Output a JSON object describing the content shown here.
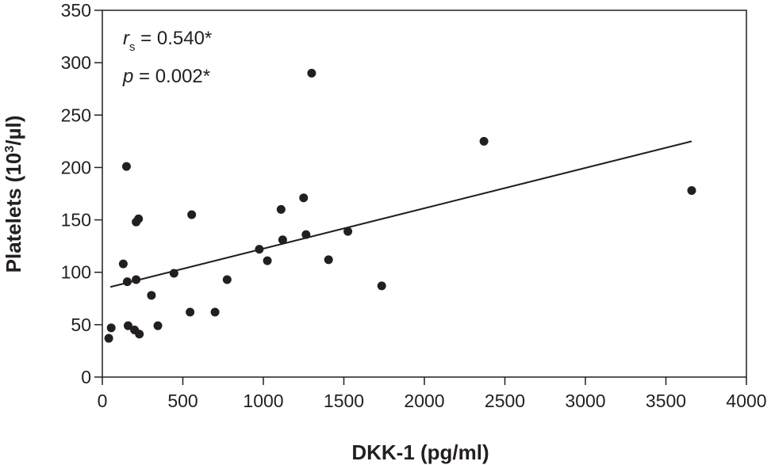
{
  "chart_data": {
    "type": "scatter",
    "xlabel": "DKK-1 (pg/ml)",
    "ylabel_parts": {
      "pre": "Platelets (10",
      "sup": "3",
      "post": "/µl)"
    },
    "xlim": [
      0,
      4000
    ],
    "ylim": [
      0,
      350
    ],
    "xticks": [
      0,
      500,
      1000,
      1500,
      2000,
      2500,
      3000,
      3500,
      4000
    ],
    "yticks": [
      0,
      50,
      100,
      150,
      200,
      250,
      300,
      350
    ],
    "grid": false,
    "annotations": {
      "rs_symbol": "r",
      "rs_sub": "s",
      "rs_value": " = 0.540*",
      "p_symbol": "p",
      "p_value": " = 0.002*"
    },
    "trendline": {
      "x": [
        50,
        3660
      ],
      "y": [
        86,
        225
      ]
    },
    "points": [
      {
        "x": 40,
        "y": 37
      },
      {
        "x": 55,
        "y": 47
      },
      {
        "x": 130,
        "y": 108
      },
      {
        "x": 150,
        "y": 201
      },
      {
        "x": 155,
        "y": 91
      },
      {
        "x": 160,
        "y": 49
      },
      {
        "x": 200,
        "y": 45
      },
      {
        "x": 210,
        "y": 93
      },
      {
        "x": 210,
        "y": 148
      },
      {
        "x": 225,
        "y": 151
      },
      {
        "x": 230,
        "y": 41
      },
      {
        "x": 305,
        "y": 78
      },
      {
        "x": 345,
        "y": 49
      },
      {
        "x": 445,
        "y": 99
      },
      {
        "x": 545,
        "y": 62
      },
      {
        "x": 555,
        "y": 155
      },
      {
        "x": 700,
        "y": 62
      },
      {
        "x": 775,
        "y": 93
      },
      {
        "x": 975,
        "y": 122
      },
      {
        "x": 1025,
        "y": 111
      },
      {
        "x": 1110,
        "y": 160
      },
      {
        "x": 1120,
        "y": 131
      },
      {
        "x": 1250,
        "y": 171
      },
      {
        "x": 1265,
        "y": 136
      },
      {
        "x": 1300,
        "y": 290
      },
      {
        "x": 1405,
        "y": 112
      },
      {
        "x": 1525,
        "y": 139
      },
      {
        "x": 1735,
        "y": 87
      },
      {
        "x": 2370,
        "y": 225
      },
      {
        "x": 3660,
        "y": 178
      }
    ]
  }
}
